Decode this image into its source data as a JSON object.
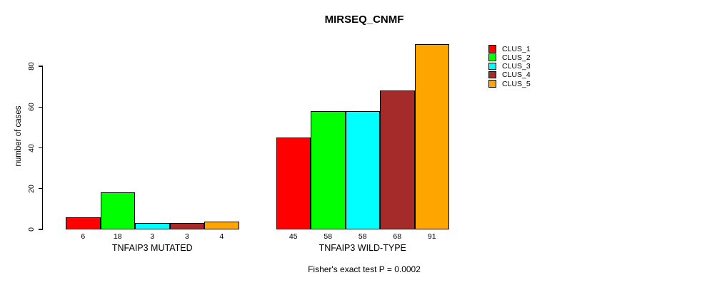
{
  "title": "MIRSEQ_CNMF",
  "subtitle": "Fisher's exact test P = 0.0002",
  "chart_data": {
    "type": "bar",
    "title": "MIRSEQ_CNMF",
    "xlabel": "",
    "ylabel": "number of cases",
    "ylim": [
      0,
      91.5
    ],
    "yticks": [
      0,
      20,
      40,
      60,
      80
    ],
    "grid": false,
    "legend_position": "top-right",
    "bar_value_labels_shown": true,
    "series": [
      {
        "name": "CLUS_1",
        "color": "#FF0000"
      },
      {
        "name": "CLUS_2",
        "color": "#00FF00"
      },
      {
        "name": "CLUS_3",
        "color": "#00FFFF"
      },
      {
        "name": "CLUS_4",
        "color": "#A52A2A"
      },
      {
        "name": "CLUS_5",
        "color": "#FFA500"
      }
    ],
    "groups": [
      {
        "label": "TNFAIP3 MUTATED",
        "values": [
          6,
          18,
          3,
          3,
          4
        ]
      },
      {
        "label": "TNFAIP3 WILD-TYPE",
        "values": [
          45,
          58,
          58,
          68,
          91
        ]
      }
    ]
  }
}
